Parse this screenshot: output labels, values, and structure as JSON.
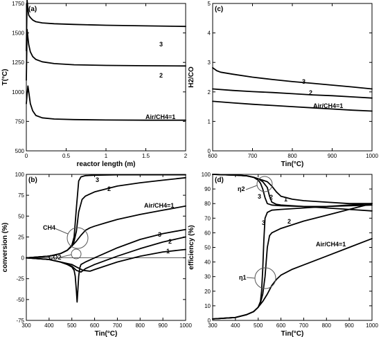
{
  "chart_data": [
    {
      "id": "a",
      "type": "line",
      "panel_label": "(a)",
      "xlabel": "reactor length (m)",
      "ylabel": "T(°C)",
      "xlim": [
        0,
        2
      ],
      "ylim": [
        500,
        1750
      ],
      "xticks": [
        "0",
        "0.5",
        "1",
        "1.5",
        "2"
      ],
      "yticks": [
        "500",
        "750",
        "1000",
        "1250",
        "1500",
        "1750"
      ],
      "series": [
        {
          "label": "3",
          "x": [
            0,
            0.01,
            0.02,
            0.03,
            0.05,
            0.08,
            0.12,
            0.2,
            0.35,
            0.6,
            1.0,
            1.5,
            2.0
          ],
          "y": [
            1350,
            1780,
            1700,
            1650,
            1630,
            1610,
            1595,
            1585,
            1578,
            1572,
            1565,
            1560,
            1555
          ]
        },
        {
          "label": "2",
          "x": [
            0,
            0.01,
            0.02,
            0.03,
            0.05,
            0.08,
            0.12,
            0.2,
            0.35,
            0.6,
            1.0,
            1.5,
            2.0
          ],
          "y": [
            1100,
            1530,
            1460,
            1400,
            1340,
            1300,
            1275,
            1255,
            1240,
            1230,
            1225,
            1222,
            1220
          ]
        },
        {
          "label": "Air/CH4=1",
          "x": [
            0,
            0.01,
            0.02,
            0.03,
            0.05,
            0.08,
            0.12,
            0.2,
            0.35,
            0.6,
            1.0,
            1.5,
            2.0
          ],
          "y": [
            900,
            980,
            1050,
            1000,
            900,
            840,
            800,
            780,
            770,
            765,
            762,
            760,
            760
          ]
        }
      ]
    },
    {
      "id": "c",
      "type": "line",
      "panel_label": "(c)",
      "xlabel": "Tin(°C)",
      "ylabel": "H2/CO",
      "xlim": [
        600,
        1000
      ],
      "ylim": [
        0,
        5
      ],
      "xticks": [
        "600",
        "700",
        "800",
        "900",
        "1000"
      ],
      "yticks": [
        "0",
        "1",
        "2",
        "3",
        "4",
        "5"
      ],
      "series": [
        {
          "label": "3",
          "x": [
            600,
            610,
            620,
            650,
            700,
            750,
            800,
            850,
            900,
            950,
            1000
          ],
          "y": [
            2.82,
            2.72,
            2.67,
            2.6,
            2.5,
            2.42,
            2.35,
            2.29,
            2.23,
            2.17,
            2.1
          ]
        },
        {
          "label": "2",
          "x": [
            600,
            650,
            700,
            750,
            800,
            850,
            900,
            950,
            1000
          ],
          "y": [
            2.1,
            2.05,
            2.01,
            1.98,
            1.94,
            1.9,
            1.87,
            1.83,
            1.79
          ]
        },
        {
          "label": "Air/CH4=1",
          "x": [
            600,
            650,
            700,
            750,
            800,
            850,
            900,
            950,
            1000
          ],
          "y": [
            1.68,
            1.63,
            1.58,
            1.54,
            1.5,
            1.46,
            1.42,
            1.38,
            1.35
          ]
        }
      ]
    },
    {
      "id": "b",
      "type": "line",
      "panel_label": "(b)",
      "xlabel": "Tin(°C)",
      "ylabel": "conversion (%)",
      "xlim": [
        300,
        1000
      ],
      "ylim": [
        -75,
        100
      ],
      "xticks": [
        "300",
        "400",
        "500",
        "600",
        "700",
        "800",
        "900",
        "1000"
      ],
      "yticks": [
        "-75",
        "-50",
        "-25",
        "0",
        "25",
        "50",
        "75",
        "100"
      ],
      "annotations": [
        "CH4",
        "CO2",
        "3",
        "2",
        "Air/CH4=1",
        "3",
        "2",
        "1"
      ],
      "series": [
        {
          "label": "CH4 3",
          "x": [
            300,
            400,
            450,
            480,
            500,
            510,
            520,
            530,
            540,
            560,
            600,
            700,
            800,
            900,
            1000
          ],
          "y": [
            0,
            2,
            5,
            9,
            15,
            25,
            60,
            92,
            97,
            98.5,
            99,
            99.5,
            99.5,
            99.5,
            99.5
          ]
        },
        {
          "label": "CH4 2",
          "x": [
            300,
            400,
            450,
            480,
            500,
            510,
            520,
            530,
            545,
            560,
            600,
            700,
            800,
            900,
            1000
          ],
          "y": [
            0,
            2,
            5,
            9,
            14,
            20,
            32,
            55,
            70,
            74,
            79,
            86,
            90,
            93,
            96
          ]
        },
        {
          "label": "CH4 1",
          "x": [
            300,
            400,
            450,
            480,
            500,
            520,
            540,
            560,
            580,
            600,
            650,
            700,
            800,
            900,
            1000
          ],
          "y": [
            0,
            2,
            5,
            9,
            14,
            20,
            27,
            33,
            36,
            38,
            42,
            46,
            52,
            57,
            62
          ]
        },
        {
          "label": "CO2 3",
          "x": [
            300,
            400,
            450,
            480,
            500,
            510,
            515,
            520,
            523,
            526,
            530,
            535,
            540,
            560,
            600,
            700,
            800,
            900,
            1000
          ],
          "y": [
            0,
            -2,
            -5,
            -8,
            -11,
            -15,
            -22,
            -40,
            -53,
            -40,
            -22,
            -12,
            -8,
            -5,
            0,
            12,
            22,
            29,
            34
          ]
        },
        {
          "label": "CO2 2",
          "x": [
            300,
            400,
            450,
            500,
            520,
            540,
            560,
            600,
            700,
            800,
            900,
            1000
          ],
          "y": [
            0,
            -2,
            -5,
            -10,
            -15,
            -17,
            -13,
            -8,
            2,
            11,
            19,
            25
          ]
        },
        {
          "label": "CO2 1",
          "x": [
            300,
            400,
            450,
            500,
            520,
            550,
            580,
            600,
            700,
            800,
            900,
            1000
          ],
          "y": [
            0,
            -2,
            -5,
            -8,
            -11,
            -15,
            -16,
            -14,
            -5,
            2,
            7,
            10
          ]
        }
      ]
    },
    {
      "id": "d",
      "type": "line",
      "panel_label": "(d)",
      "xlabel": "Tin(°C)",
      "ylabel": "efficiency (%)",
      "xlim": [
        300,
        1000
      ],
      "ylim": [
        0,
        100
      ],
      "xticks": [
        "300",
        "400",
        "500",
        "600",
        "700",
        "800",
        "900",
        "1000"
      ],
      "yticks": [
        "0",
        "10",
        "20",
        "30",
        "40",
        "50",
        "60",
        "70",
        "80",
        "90",
        "100"
      ],
      "annotations": [
        "η2",
        "η1",
        "3",
        "2",
        "1",
        "3",
        "2",
        "Air/CH4=1"
      ],
      "series": [
        {
          "label": "eta2 3",
          "x": [
            300,
            400,
            450,
            480,
            500,
            510,
            520,
            530,
            540,
            560,
            600,
            700,
            800,
            900,
            1000
          ],
          "y": [
            100,
            99.5,
            99,
            98,
            96,
            94,
            90,
            84,
            80,
            79,
            78.5,
            78,
            78,
            79,
            80
          ]
        },
        {
          "label": "eta2 2",
          "x": [
            300,
            400,
            450,
            480,
            500,
            520,
            540,
            550,
            560,
            580,
            600,
            700,
            800,
            900,
            1000
          ],
          "y": [
            100,
            99.5,
            99,
            98,
            97,
            95,
            91,
            85,
            81,
            79.5,
            79,
            78,
            77,
            76,
            75
          ]
        },
        {
          "label": "eta2 1",
          "x": [
            300,
            400,
            450,
            480,
            500,
            520,
            540,
            560,
            580,
            600,
            650,
            700,
            800,
            900,
            1000
          ],
          "y": [
            100,
            99.5,
            99,
            98,
            97,
            96,
            95,
            92,
            88,
            85,
            83,
            82,
            81,
            80,
            80
          ]
        },
        {
          "label": "eta1 3",
          "x": [
            300,
            400,
            450,
            480,
            500,
            510,
            515,
            520,
            525,
            530,
            540,
            560,
            600,
            700,
            800,
            900,
            1000
          ],
          "y": [
            1,
            2,
            4,
            6,
            9,
            13,
            20,
            35,
            55,
            70,
            74,
            75.5,
            76,
            77,
            78,
            78.5,
            79
          ]
        },
        {
          "label": "eta1 2",
          "x": [
            300,
            400,
            450,
            480,
            500,
            510,
            520,
            530,
            540,
            550,
            560,
            600,
            700,
            800,
            900,
            1000
          ],
          "y": [
            1,
            2,
            4,
            6,
            9,
            12,
            18,
            30,
            50,
            58,
            60,
            63,
            68,
            72,
            76,
            80
          ]
        },
        {
          "label": "eta1 1",
          "x": [
            300,
            400,
            450,
            480,
            500,
            520,
            540,
            560,
            580,
            600,
            650,
            700,
            800,
            900,
            1000
          ],
          "y": [
            1,
            2,
            4,
            6,
            9,
            13,
            18,
            24,
            28,
            31,
            35,
            38,
            44,
            50,
            56
          ]
        }
      ]
    }
  ]
}
